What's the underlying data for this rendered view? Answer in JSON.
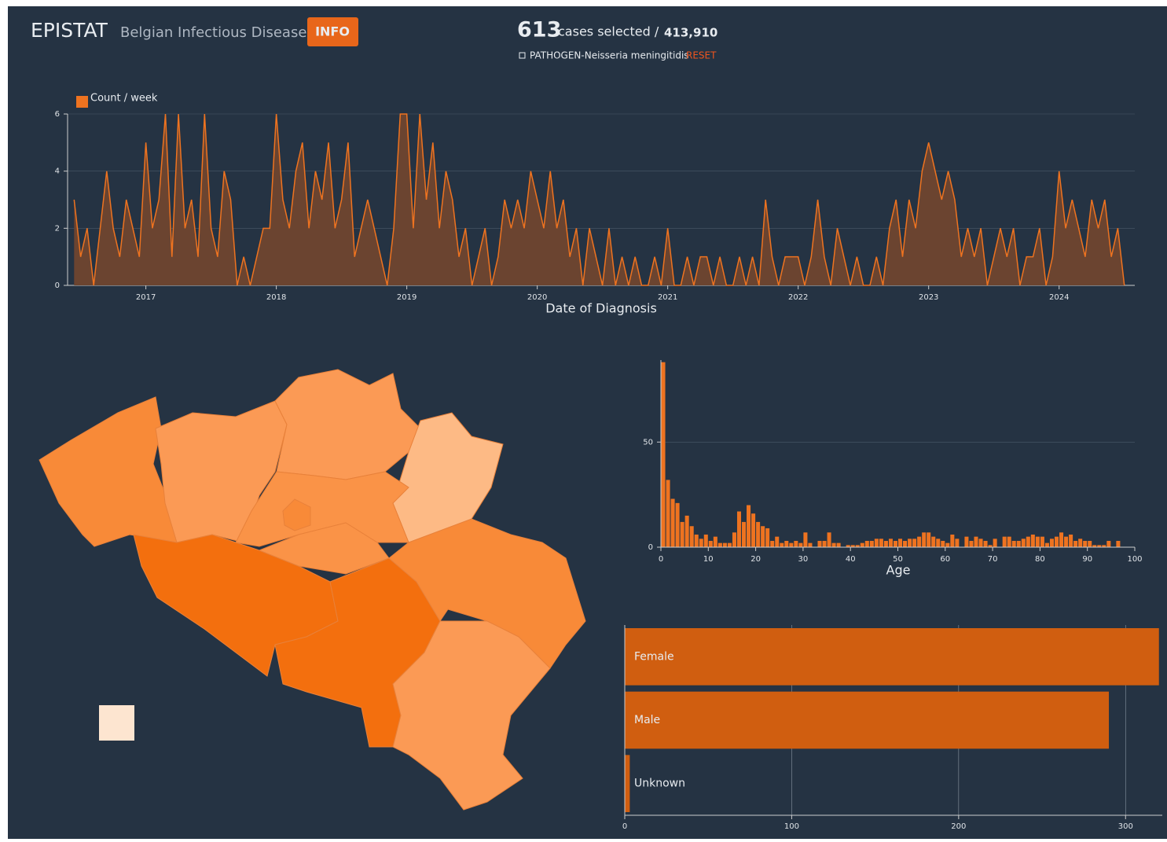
{
  "header": {
    "app": "EPISTAT",
    "subtitle": "Belgian Infectious Diseases",
    "button": "INFO",
    "selected": "613",
    "selected_text": "cases selected /",
    "total": "413,910",
    "filter": "PATHOGEN-Neisseria meningitidis",
    "reset": "RESET"
  },
  "chart_data": [
    {
      "type": "area",
      "legend": "Count / week",
      "xlabel": "Date of Diagnosis",
      "color": "#ee7320",
      "fill": "#6b4430",
      "xlim": [
        2016.4,
        2024.58
      ],
      "xticks": [
        2017,
        2018,
        2019,
        2020,
        2021,
        2022,
        2023,
        2024
      ],
      "ylim": [
        0,
        6
      ],
      "yticks": [
        0,
        2,
        4,
        6
      ],
      "grid": true,
      "x": [
        2016.45,
        2016.5,
        2016.55,
        2016.6,
        2016.65,
        2016.7,
        2016.75,
        2016.8,
        2016.85,
        2016.9,
        2016.95,
        2017,
        2017.05,
        2017.1,
        2017.15,
        2017.2,
        2017.25,
        2017.3,
        2017.35,
        2017.4,
        2017.45,
        2017.5,
        2017.55,
        2017.6,
        2017.65,
        2017.7,
        2017.75,
        2017.8,
        2017.85,
        2017.9,
        2017.95,
        2018,
        2018.05,
        2018.1,
        2018.15,
        2018.2,
        2018.25,
        2018.3,
        2018.35,
        2018.4,
        2018.45,
        2018.5,
        2018.55,
        2018.6,
        2018.65,
        2018.7,
        2018.75,
        2018.8,
        2018.85,
        2018.9,
        2018.95,
        2019,
        2019.05,
        2019.1,
        2019.15,
        2019.2,
        2019.25,
        2019.3,
        2019.35,
        2019.4,
        2019.45,
        2019.5,
        2019.55,
        2019.6,
        2019.65,
        2019.7,
        2019.75,
        2019.8,
        2019.85,
        2019.9,
        2019.95,
        2020,
        2020.05,
        2020.1,
        2020.15,
        2020.2,
        2020.25,
        2020.3,
        2020.35,
        2020.4,
        2020.45,
        2020.5,
        2020.55,
        2020.6,
        2020.65,
        2020.7,
        2020.75,
        2020.8,
        2020.85,
        2020.9,
        2020.95,
        2021,
        2021.05,
        2021.1,
        2021.15,
        2021.2,
        2021.25,
        2021.3,
        2021.35,
        2021.4,
        2021.45,
        2021.5,
        2021.55,
        2021.6,
        2021.65,
        2021.7,
        2021.75,
        2021.8,
        2021.85,
        2021.9,
        2021.95,
        2022,
        2022.05,
        2022.1,
        2022.15,
        2022.2,
        2022.25,
        2022.3,
        2022.35,
        2022.4,
        2022.45,
        2022.5,
        2022.55,
        2022.6,
        2022.65,
        2022.7,
        2022.75,
        2022.8,
        2022.85,
        2022.9,
        2022.95,
        2023,
        2023.05,
        2023.1,
        2023.15,
        2023.2,
        2023.25,
        2023.3,
        2023.35,
        2023.4,
        2023.45,
        2023.5,
        2023.55,
        2023.6,
        2023.65,
        2023.7,
        2023.75,
        2023.8,
        2023.85,
        2023.9,
        2023.95,
        2024,
        2024.05,
        2024.1,
        2024.15,
        2024.2,
        2024.25,
        2024.3,
        2024.35,
        2024.4,
        2024.45,
        2024.5
      ],
      "values": [
        3,
        1,
        2,
        0,
        2,
        4,
        2,
        1,
        3,
        2,
        1,
        5,
        2,
        3,
        6,
        1,
        6,
        2,
        3,
        1,
        6,
        2,
        1,
        4,
        3,
        0,
        1,
        0,
        1,
        2,
        2,
        6,
        3,
        2,
        4,
        5,
        2,
        4,
        3,
        5,
        2,
        3,
        5,
        1,
        2,
        3,
        2,
        1,
        0,
        2,
        6,
        6,
        2,
        6,
        3,
        5,
        2,
        4,
        3,
        1,
        2,
        0,
        1,
        2,
        0,
        1,
        3,
        2,
        3,
        2,
        4,
        3,
        2,
        4,
        2,
        3,
        1,
        2,
        0,
        2,
        1,
        0,
        2,
        0,
        1,
        0,
        1,
        0,
        0,
        1,
        0,
        2,
        0,
        0,
        1,
        0,
        1,
        1,
        0,
        1,
        0,
        0,
        1,
        0,
        1,
        0,
        3,
        1,
        0,
        1,
        1,
        1,
        0,
        1,
        3,
        1,
        0,
        2,
        1,
        0,
        1,
        0,
        0,
        1,
        0,
        2,
        3,
        1,
        3,
        2,
        4,
        5,
        4,
        3,
        4,
        3,
        1,
        2,
        1,
        2,
        0,
        1,
        2,
        1,
        2,
        0,
        1,
        1,
        2,
        0,
        1,
        4,
        2,
        3,
        2,
        1,
        3,
        2,
        3,
        1,
        2,
        0
      ]
    },
    {
      "type": "histogram",
      "xlabel": "Age",
      "color": "#ee7320",
      "xlim": [
        0,
        100
      ],
      "xticks": [
        0,
        10,
        20,
        30,
        40,
        50,
        60,
        70,
        80,
        90,
        100
      ],
      "ylim": [
        0,
        89
      ],
      "yticks": [
        0,
        50
      ],
      "grid": true,
      "bins": [
        0,
        1,
        2,
        3,
        4,
        5,
        6,
        7,
        8,
        9,
        10,
        11,
        12,
        13,
        14,
        15,
        16,
        17,
        18,
        19,
        20,
        21,
        22,
        23,
        24,
        25,
        26,
        27,
        28,
        29,
        30,
        31,
        32,
        33,
        34,
        35,
        36,
        37,
        38,
        39,
        40,
        41,
        42,
        43,
        44,
        45,
        46,
        47,
        48,
        49,
        50,
        51,
        52,
        53,
        54,
        55,
        56,
        57,
        58,
        59,
        60,
        61,
        62,
        63,
        64,
        65,
        66,
        67,
        68,
        69,
        70,
        71,
        72,
        73,
        74,
        75,
        76,
        77,
        78,
        79,
        80,
        81,
        82,
        83,
        84,
        85,
        86,
        87,
        88,
        89,
        90,
        91,
        92,
        93,
        94,
        95,
        96,
        97
      ],
      "values": [
        88,
        32,
        23,
        21,
        12,
        15,
        10,
        6,
        4,
        6,
        3,
        5,
        2,
        2,
        2,
        7,
        17,
        12,
        20,
        16,
        12,
        10,
        9,
        3,
        5,
        2,
        3,
        2,
        3,
        2,
        7,
        2,
        0,
        3,
        3,
        7,
        2,
        2,
        0,
        1,
        1,
        1,
        2,
        3,
        3,
        4,
        4,
        3,
        4,
        3,
        4,
        3,
        4,
        4,
        5,
        7,
        7,
        5,
        4,
        3,
        2,
        6,
        4,
        0,
        5,
        3,
        5,
        4,
        3,
        1,
        4,
        0,
        5,
        5,
        3,
        3,
        4,
        5,
        6,
        5,
        5,
        2,
        4,
        5,
        7,
        5,
        6,
        3,
        4,
        3,
        3,
        1,
        1,
        1,
        3,
        0,
        3
      ]
    },
    {
      "type": "hbar",
      "color": "#d05e10",
      "categories": [
        "Female",
        "Male",
        "Unknown"
      ],
      "values": [
        320,
        290,
        3
      ],
      "xlim": [
        0,
        322
      ],
      "xticks": [
        0,
        100,
        200,
        300
      ],
      "grid": true
    }
  ]
}
